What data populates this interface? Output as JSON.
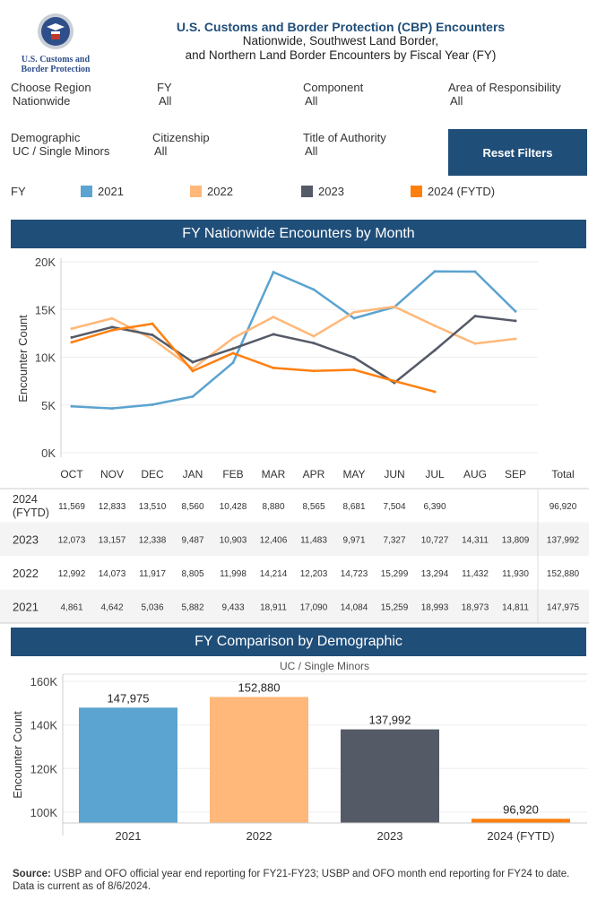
{
  "header": {
    "logo_text": "U.S. Customs and Border Protection",
    "title": "U.S. Customs and Border Protection (CBP) Encounters",
    "subtitle1": "Nationwide, Southwest Land Border,",
    "subtitle2": "and Northern Land Border Encounters by Fiscal Year (FY)"
  },
  "filters": [
    {
      "label": "Choose Region",
      "value": "Nationwide"
    },
    {
      "label": "FY",
      "value": "All"
    },
    {
      "label": "Component",
      "value": "All"
    },
    {
      "label": "Area of Responsibility",
      "value": "All"
    },
    {
      "label": "Demographic",
      "value": "UC / Single Minors"
    },
    {
      "label": "Citizenship",
      "value": "All"
    },
    {
      "label": "Title of Authority",
      "value": "All"
    }
  ],
  "reset_label": "Reset Filters",
  "legend": {
    "title": "FY",
    "items": [
      {
        "label": "2021",
        "color": "#5ba3d0"
      },
      {
        "label": "2022",
        "color": "#ffb879"
      },
      {
        "label": "2023",
        "color": "#545a66"
      },
      {
        "label": "2024 (FYTD)",
        "color": "#ff7f0e"
      }
    ]
  },
  "chart_data": [
    {
      "type": "line",
      "title": "FY Nationwide Encounters by Month",
      "ylabel": "Encounter Count",
      "ylim": [
        0,
        20000
      ],
      "yticks": [
        "0K",
        "5K",
        "10K",
        "15K",
        "20K"
      ],
      "categories": [
        "OCT",
        "NOV",
        "DEC",
        "JAN",
        "FEB",
        "MAR",
        "APR",
        "MAY",
        "JUN",
        "JUL",
        "AUG",
        "SEP"
      ],
      "total_label": "Total",
      "series": [
        {
          "name": "2024 (FYTD)",
          "row_label": [
            "2024",
            "(FYTD)"
          ],
          "color": "#ff7f0e",
          "values": [
            11569,
            12833,
            13510,
            8560,
            10428,
            8880,
            8565,
            8681,
            7504,
            6390,
            null,
            null
          ],
          "labels": [
            "11,569",
            "12,833",
            "13,510",
            "8,560",
            "10,428",
            "8,880",
            "8,565",
            "8,681",
            "7,504",
            "6,390",
            "",
            ""
          ],
          "total": "96,920"
        },
        {
          "name": "2023",
          "row_label": [
            "2023"
          ],
          "color": "#545a66",
          "values": [
            12073,
            13157,
            12338,
            9487,
            10903,
            12406,
            11483,
            9971,
            7327,
            10727,
            14311,
            13809
          ],
          "labels": [
            "12,073",
            "13,157",
            "12,338",
            "9,487",
            "10,903",
            "12,406",
            "11,483",
            "9,971",
            "7,327",
            "10,727",
            "14,311",
            "13,809"
          ],
          "total": "137,992"
        },
        {
          "name": "2022",
          "row_label": [
            "2022"
          ],
          "color": "#ffb879",
          "values": [
            12992,
            14073,
            11917,
            8805,
            11998,
            14214,
            12203,
            14723,
            15299,
            13294,
            11432,
            11930
          ],
          "labels": [
            "12,992",
            "14,073",
            "11,917",
            "8,805",
            "11,998",
            "14,214",
            "12,203",
            "14,723",
            "15,299",
            "13,294",
            "11,432",
            "11,930"
          ],
          "total": "152,880"
        },
        {
          "name": "2021",
          "row_label": [
            "2021"
          ],
          "color": "#5ba3d0",
          "values": [
            4861,
            4642,
            5036,
            5882,
            9433,
            18911,
            17090,
            14084,
            15259,
            18993,
            18973,
            14811
          ],
          "labels": [
            "4,861",
            "4,642",
            "5,036",
            "5,882",
            "9,433",
            "18,911",
            "17,090",
            "14,084",
            "15,259",
            "18,993",
            "18,973",
            "14,811"
          ],
          "total": "147,975"
        }
      ]
    },
    {
      "type": "bar",
      "title": "FY Comparison by Demographic",
      "subtitle": "UC / Single Minors",
      "ylabel": "Encounter Count",
      "ylim": [
        95000,
        165000
      ],
      "yticks": [
        {
          "v": 100000,
          "l": "100K"
        },
        {
          "v": 120000,
          "l": "120K"
        },
        {
          "v": 140000,
          "l": "140K"
        },
        {
          "v": 160000,
          "l": "160K"
        }
      ],
      "categories": [
        "2021",
        "2022",
        "2023",
        "2024 (FYTD)"
      ],
      "values": [
        147975,
        152880,
        137992,
        96920
      ],
      "labels": [
        "147,975",
        "152,880",
        "137,992",
        "96,920"
      ],
      "colors": [
        "#5ba3d0",
        "#ffb879",
        "#545a66",
        "#ff7f0e"
      ]
    }
  ],
  "source": {
    "bold": "Source:",
    "text": " USBP and OFO official year end reporting for FY21-FY23; USBP and OFO month end reporting for FY24 to date. Data is current as of 8/6/2024."
  }
}
